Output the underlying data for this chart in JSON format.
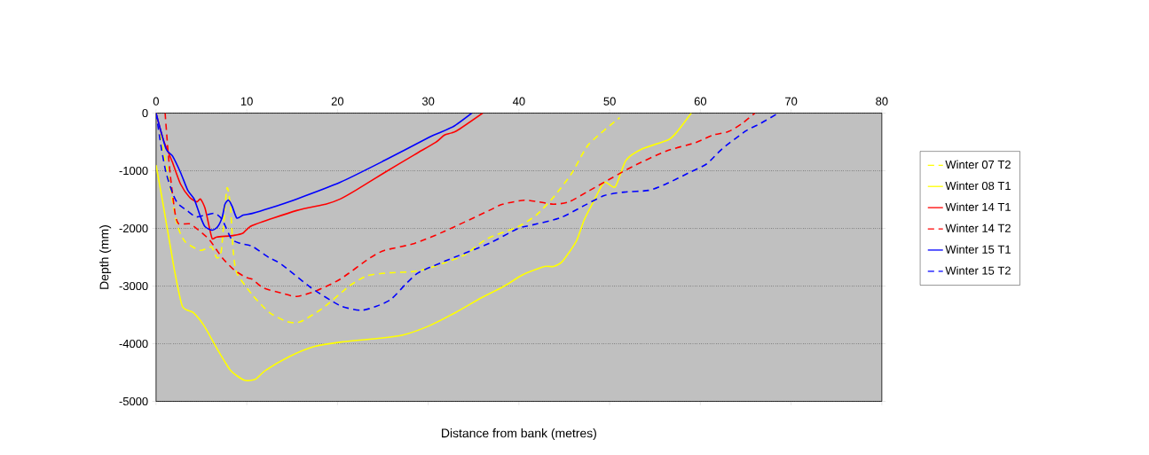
{
  "chart_data": {
    "type": "line",
    "xlabel": "Distance from bank (metres)",
    "ylabel": "Depth (mm)",
    "xlim": [
      0,
      80
    ],
    "ylim": [
      -5000,
      0
    ],
    "xticks": [
      0,
      10,
      20,
      30,
      40,
      50,
      60,
      70,
      80
    ],
    "yticks": [
      -5000,
      -4000,
      -3000,
      -2000,
      -1000,
      0
    ],
    "grid": "y",
    "legend": "right",
    "series": [
      {
        "name": "Winter 07 T2",
        "color": "#ffff00",
        "line_style": "dashed",
        "x": [
          0,
          1.4,
          2.3,
          3.2,
          4.9,
          6.1,
          6.7,
          7.2,
          7.8,
          8.2,
          8.5,
          8.9,
          10.6,
          12.5,
          14.5,
          15.9,
          18.4,
          21.3,
          23.3,
          25.7,
          28.2,
          30.1,
          32.1,
          34.0,
          36.5,
          39.9,
          41.9,
          43.8,
          45.8,
          47.7,
          51.1
        ],
        "values": [
          0,
          -1150,
          -1920,
          -2230,
          -2380,
          -2320,
          -2510,
          -2380,
          -1310,
          -1620,
          -2380,
          -2770,
          -3150,
          -3460,
          -3620,
          -3620,
          -3380,
          -3000,
          -2820,
          -2770,
          -2750,
          -2690,
          -2580,
          -2460,
          -2180,
          -1970,
          -1770,
          -1460,
          -1050,
          -540,
          -80
        ]
      },
      {
        "name": "Winter 08 T1",
        "color": "#ffff00",
        "line_style": "solid",
        "x": [
          0,
          0.8,
          2.0,
          2.9,
          4.1,
          5.3,
          6.7,
          8.2,
          9.7,
          10.9,
          12.1,
          14.6,
          17.4,
          20.4,
          24.3,
          27.2,
          30.1,
          33.0,
          35.9,
          38.4,
          39.9,
          40.9,
          42.8,
          43.8,
          44.8,
          46.3,
          47.2,
          48.2,
          49.4,
          50.6,
          51.8,
          53.6,
          56.5,
          57.5,
          59.0
        ],
        "values": [
          -900,
          -1600,
          -2700,
          -3350,
          -3460,
          -3690,
          -4080,
          -4460,
          -4630,
          -4620,
          -4460,
          -4230,
          -4050,
          -3970,
          -3910,
          -3850,
          -3690,
          -3460,
          -3200,
          -3000,
          -2850,
          -2770,
          -2660,
          -2660,
          -2570,
          -2230,
          -1850,
          -1540,
          -1200,
          -1280,
          -820,
          -620,
          -460,
          -310,
          0
        ]
      },
      {
        "name": "Winter 14 T1",
        "color": "#ff0000",
        "line_style": "solid",
        "x": [
          0,
          0.8,
          1.8,
          2.7,
          3.7,
          4.5,
          4.9,
          5.4,
          5.9,
          6.2,
          6.7,
          8.6,
          9.6,
          10.6,
          15.5,
          18.7,
          20.3,
          22.0,
          25.2,
          28.5,
          30.8,
          31.8,
          33.1,
          36.0
        ],
        "values": [
          0,
          -460,
          -850,
          -1230,
          -1460,
          -1540,
          -1490,
          -1650,
          -2000,
          -2180,
          -2150,
          -2120,
          -2080,
          -1950,
          -1690,
          -1580,
          -1490,
          -1340,
          -1030,
          -720,
          -510,
          -380,
          -310,
          0
        ]
      },
      {
        "name": "Winter 14 T2",
        "color": "#ff0000",
        "line_style": "dashed",
        "x": [
          1.0,
          1.3,
          1.6,
          2.1,
          2.5,
          3.7,
          4.7,
          5.9,
          7.3,
          8.6,
          9.9,
          10.6,
          11.8,
          13.8,
          15.5,
          17.7,
          20.3,
          23.6,
          25.2,
          28.5,
          31.8,
          36.7,
          38.2,
          40.6,
          42.2,
          43.8,
          45.5,
          47.7,
          50.4,
          52.6,
          56.2,
          59.5,
          61.4,
          63.1,
          64.6,
          66.0
        ],
        "values": [
          0,
          -620,
          -1120,
          -1740,
          -1920,
          -1920,
          -2030,
          -2200,
          -2510,
          -2720,
          -2850,
          -2880,
          -3030,
          -3120,
          -3180,
          -3080,
          -2880,
          -2510,
          -2380,
          -2260,
          -2050,
          -1690,
          -1580,
          -1510,
          -1540,
          -1580,
          -1540,
          -1350,
          -1110,
          -920,
          -660,
          -510,
          -380,
          -320,
          -180,
          0
        ]
      },
      {
        "name": "Winter 15 T1",
        "color": "#0000ff",
        "line_style": "solid",
        "x": [
          0,
          1.1,
          1.8,
          2.7,
          3.5,
          4.2,
          4.9,
          5.4,
          6.2,
          6.8,
          7.3,
          7.6,
          8.0,
          8.4,
          8.9,
          9.6,
          10.6,
          12.5,
          15.5,
          20.3,
          25.2,
          30.1,
          31.1,
          32.8,
          34.8
        ],
        "values": [
          0,
          -620,
          -740,
          -1030,
          -1340,
          -1490,
          -1800,
          -1970,
          -2030,
          -1970,
          -1800,
          -1580,
          -1510,
          -1620,
          -1820,
          -1770,
          -1740,
          -1650,
          -1490,
          -1200,
          -820,
          -420,
          -350,
          -230,
          0
        ]
      },
      {
        "name": "Winter 15 T2",
        "color": "#0000ff",
        "line_style": "dashed",
        "x": [
          0,
          0.6,
          1.1,
          1.8,
          2.4,
          3.4,
          4.4,
          5.4,
          6.5,
          7.3,
          8.3,
          9.3,
          10.6,
          12.5,
          13.8,
          17.1,
          20.3,
          22.6,
          24.3,
          25.9,
          27.5,
          28.9,
          31.8,
          36.7,
          39.9,
          41.2,
          44.5,
          47.0,
          49.4,
          51.6,
          54.3,
          56.2,
          58.8,
          60.7,
          62.4,
          65.0,
          66.6,
          68.6
        ],
        "values": [
          0,
          -620,
          -1030,
          -1380,
          -1570,
          -1690,
          -1800,
          -1770,
          -1740,
          -1850,
          -2180,
          -2260,
          -2310,
          -2510,
          -2620,
          -3030,
          -3340,
          -3420,
          -3350,
          -3230,
          -2970,
          -2770,
          -2570,
          -2260,
          -2000,
          -1950,
          -1820,
          -1620,
          -1430,
          -1370,
          -1340,
          -1230,
          -1030,
          -880,
          -620,
          -310,
          -180,
          0
        ]
      }
    ]
  }
}
